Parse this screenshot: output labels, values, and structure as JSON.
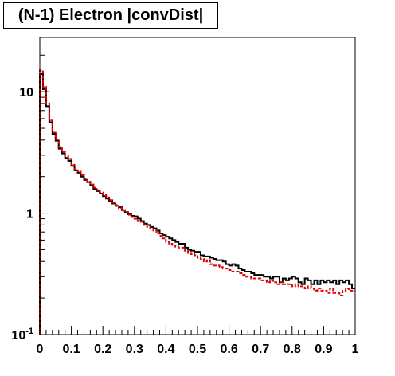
{
  "chart_data": {
    "type": "histogram",
    "title": "(N-1) Electron |convDist|",
    "xlabel": "",
    "ylabel": "",
    "xlim": [
      0,
      1
    ],
    "ylim": [
      0.1,
      28
    ],
    "yscale": "log",
    "grid": false,
    "legend": "none",
    "x_ticks": [
      "0",
      "0.1",
      "0.2",
      "0.3",
      "0.4",
      "0.5",
      "0.6",
      "0.7",
      "0.8",
      "0.9",
      "1"
    ],
    "y_ticks": [
      {
        "value": 0.1,
        "base": "10",
        "exp": "-1"
      },
      {
        "value": 1,
        "label": "1"
      },
      {
        "value": 10,
        "label": "10"
      }
    ],
    "bins": 100,
    "series": [
      {
        "color": "#000000",
        "dash": "solid",
        "values": [
          14.0,
          10.5,
          7.6,
          5.6,
          4.5,
          3.95,
          3.4,
          3.1,
          2.85,
          2.7,
          2.45,
          2.25,
          2.15,
          2.0,
          1.88,
          1.8,
          1.7,
          1.58,
          1.52,
          1.45,
          1.38,
          1.32,
          1.26,
          1.2,
          1.15,
          1.12,
          1.06,
          1.02,
          0.98,
          0.95,
          0.94,
          0.9,
          0.86,
          0.82,
          0.8,
          0.77,
          0.75,
          0.72,
          0.68,
          0.66,
          0.64,
          0.62,
          0.6,
          0.58,
          0.56,
          0.56,
          0.52,
          0.5,
          0.49,
          0.48,
          0.48,
          0.45,
          0.44,
          0.44,
          0.43,
          0.42,
          0.41,
          0.41,
          0.4,
          0.38,
          0.37,
          0.38,
          0.37,
          0.35,
          0.34,
          0.33,
          0.33,
          0.32,
          0.31,
          0.31,
          0.31,
          0.3,
          0.3,
          0.29,
          0.3,
          0.3,
          0.27,
          0.29,
          0.28,
          0.29,
          0.3,
          0.29,
          0.27,
          0.26,
          0.29,
          0.28,
          0.26,
          0.28,
          0.26,
          0.28,
          0.27,
          0.28,
          0.27,
          0.28,
          0.26,
          0.28,
          0.27,
          0.28,
          0.26,
          0.24
        ]
      },
      {
        "color": "#dd0000",
        "dash": "dashed",
        "values": [
          15.0,
          11.0,
          8.0,
          5.8,
          4.6,
          4.05,
          3.5,
          3.2,
          2.95,
          2.8,
          2.5,
          2.3,
          2.2,
          2.05,
          1.92,
          1.82,
          1.72,
          1.62,
          1.55,
          1.48,
          1.42,
          1.35,
          1.28,
          1.22,
          1.17,
          1.1,
          1.05,
          1.02,
          0.97,
          0.93,
          0.9,
          0.86,
          0.85,
          0.8,
          0.77,
          0.75,
          0.72,
          0.68,
          0.65,
          0.62,
          0.58,
          0.56,
          0.54,
          0.53,
          0.52,
          0.52,
          0.49,
          0.47,
          0.46,
          0.45,
          0.43,
          0.42,
          0.4,
          0.41,
          0.38,
          0.37,
          0.37,
          0.36,
          0.35,
          0.35,
          0.34,
          0.33,
          0.33,
          0.32,
          0.31,
          0.3,
          0.3,
          0.29,
          0.29,
          0.29,
          0.28,
          0.28,
          0.27,
          0.28,
          0.27,
          0.26,
          0.27,
          0.26,
          0.26,
          0.26,
          0.25,
          0.26,
          0.25,
          0.25,
          0.24,
          0.25,
          0.24,
          0.23,
          0.24,
          0.23,
          0.23,
          0.22,
          0.24,
          0.22,
          0.22,
          0.21,
          0.23,
          0.24,
          0.23,
          0.23
        ]
      }
    ]
  }
}
